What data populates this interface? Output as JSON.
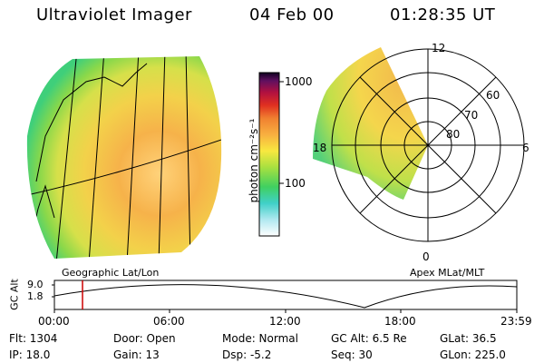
{
  "header": {
    "instrument": "Ultraviolet Imager",
    "date": "04 Feb 00",
    "time": "01:28:35 UT"
  },
  "colorbar": {
    "unit_label": "photon cm⁻²s⁻¹",
    "ticks": [
      "1000",
      "100"
    ]
  },
  "left_panel": {
    "caption": "Geographic Lat/Lon"
  },
  "right_panel": {
    "caption": "Apex MLat/MLT",
    "mlt_labels": [
      "12",
      "18",
      "6",
      "0"
    ],
    "lat_labels": [
      "60",
      "70",
      "80"
    ]
  },
  "altitude_plot": {
    "ylabel": "GC Alt",
    "y_ticks": [
      "9.0",
      "1.8"
    ],
    "x_ticks": [
      "00:00",
      "06:00",
      "12:00",
      "18:00",
      "23:59"
    ]
  },
  "status": {
    "flt": "Flt: 1304",
    "ip": "IP: 18.0",
    "door": "Door: Open",
    "gain": "Gain: 13",
    "mode": "Mode: Normal",
    "dsp": "Dsp:    -5.2",
    "gcalt": "GC Alt: 6.5 Re",
    "seq": "Seq: 30",
    "glat": "GLat:    36.5",
    "glon": "GLon: 225.0"
  }
}
